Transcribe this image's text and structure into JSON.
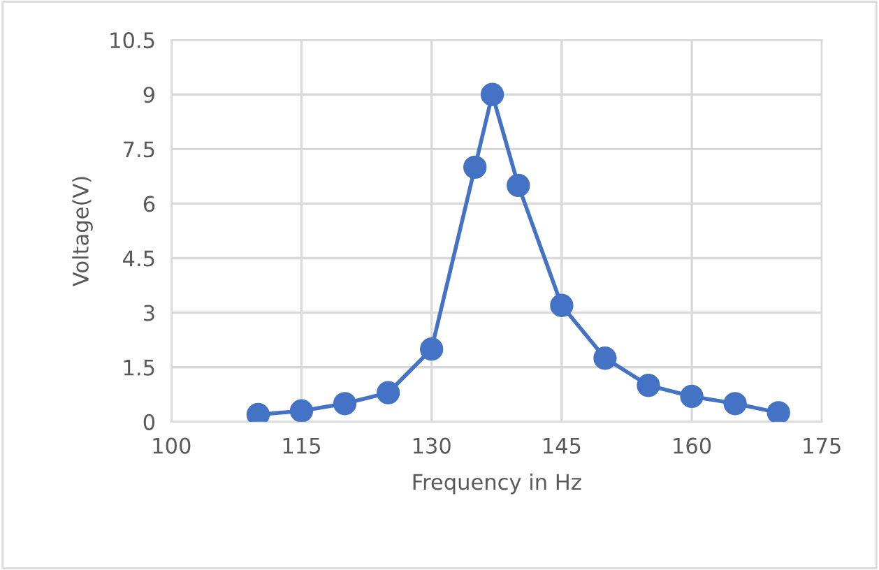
{
  "chart_data": {
    "type": "line",
    "xlabel": "Frequency in Hz",
    "ylabel": "Voltage(V)",
    "x": [
      110,
      115,
      120,
      125,
      130,
      135,
      137,
      140,
      145,
      150,
      155,
      160,
      165,
      170
    ],
    "series": [
      {
        "color": "#4472c4",
        "values": [
          0.2,
          0.3,
          0.5,
          0.8,
          2,
          7,
          9,
          6.5,
          3.2,
          1.75,
          1,
          0.7,
          0.5,
          0.25
        ]
      }
    ],
    "xlim": [
      100,
      175
    ],
    "xticks": [
      100,
      115,
      130,
      145,
      160,
      175
    ],
    "ylim": [
      0,
      10.5
    ],
    "yticks": [
      0,
      1.5,
      3,
      4.5,
      6,
      7.5,
      9,
      10.5
    ],
    "grid": true,
    "marker": "circle",
    "line_style": "solid"
  }
}
